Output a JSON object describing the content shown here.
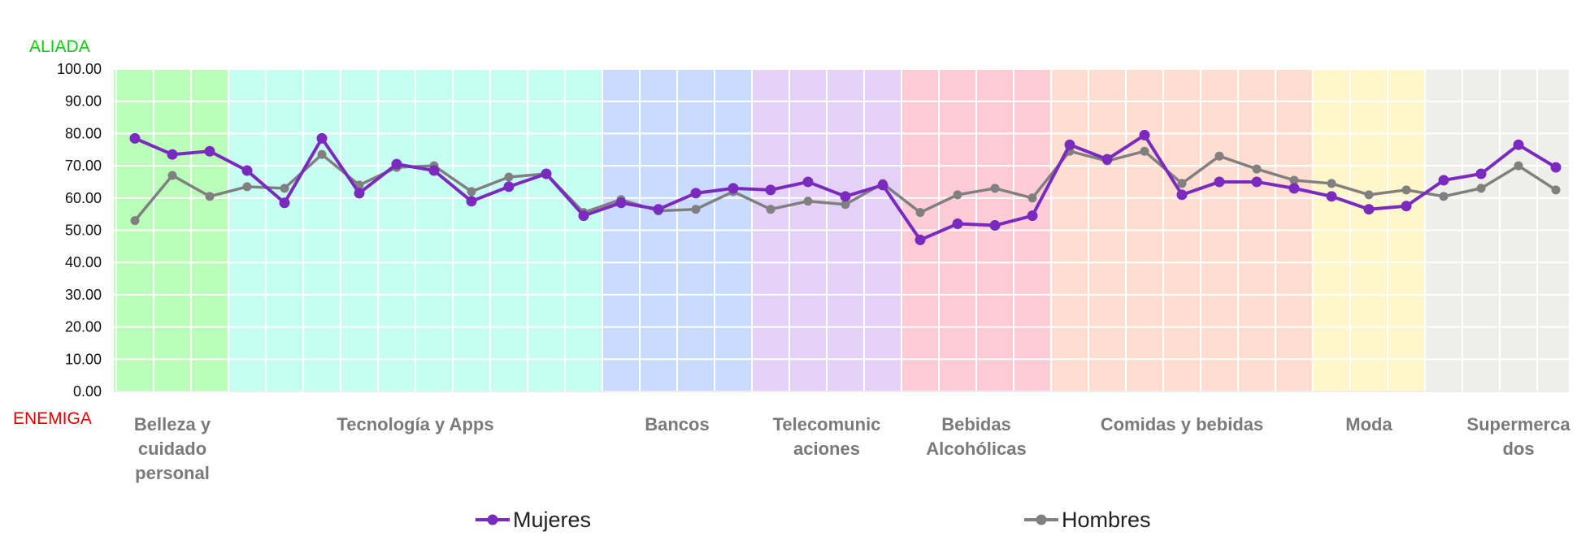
{
  "chart_data": {
    "type": "line",
    "top_label": "ALIADA",
    "bottom_label": "ENEMIGA",
    "top_label_color": "#0dcc0d",
    "bottom_label_color": "#e00000",
    "ylim": [
      0,
      100
    ],
    "y_ticks": [
      "0.00",
      "10.00",
      "20.00",
      "30.00",
      "40.00",
      "50.00",
      "60.00",
      "70.00",
      "80.00",
      "90.00",
      "100.00"
    ],
    "grid": true,
    "legend_position": "bottom",
    "x": [
      1,
      2,
      3,
      4,
      5,
      6,
      7,
      8,
      9,
      10,
      11,
      12,
      13,
      14,
      15,
      16,
      17,
      18,
      19,
      20,
      21,
      22,
      23,
      24,
      25,
      26,
      27,
      28,
      29,
      30,
      31,
      32,
      33,
      34,
      35,
      36,
      37,
      38,
      39,
      40
    ],
    "categories": [
      {
        "label": [
          "Belleza y",
          "cuidado",
          "personal"
        ],
        "from": 1,
        "to": 3,
        "color": "#b9ffb9"
      },
      {
        "label": [
          "Tecnología y Apps"
        ],
        "from": 4,
        "to": 13,
        "color": "#c6fff1"
      },
      {
        "label": [
          "Bancos"
        ],
        "from": 14,
        "to": 17,
        "color": "#c9dcff"
      },
      {
        "label": [
          "Telecomunic",
          "aciones"
        ],
        "from": 18,
        "to": 21,
        "color": "#e5d1f7"
      },
      {
        "label": [
          "Bebidas",
          "Alcohólicas"
        ],
        "from": 22,
        "to": 25,
        "color": "#ffcbd5"
      },
      {
        "label": [
          "Comidas y bebidas"
        ],
        "from": 26,
        "to": 32,
        "color": "#ffddd1"
      },
      {
        "label": [
          "Moda"
        ],
        "from": 33,
        "to": 35,
        "color": "#fff6ca"
      },
      {
        "label": [
          "Supermerca",
          "dos"
        ],
        "from": 36,
        "to": 40,
        "color": "#eeefea"
      }
    ],
    "series": [
      {
        "name": "Mujeres",
        "color": "#7b2abf",
        "values": [
          78.5,
          73.5,
          74.5,
          68.5,
          58.5,
          78.5,
          61.5,
          70.5,
          68.5,
          59.0,
          63.5,
          67.5,
          54.5,
          58.5,
          56.5,
          61.5,
          63.0,
          62.5,
          65.0,
          60.5,
          64.0,
          47.0,
          52.0,
          51.5,
          54.5,
          76.5,
          72.0,
          79.5,
          61.0,
          65.0,
          65.0,
          63.0,
          60.5,
          56.5,
          57.5,
          65.5,
          67.5,
          76.5,
          69.5,
          null
        ]
      },
      {
        "name": "Hombres",
        "color": "#808080",
        "values": [
          53.0,
          67.0,
          60.5,
          63.5,
          63.0,
          73.5,
          64.0,
          69.5,
          70.0,
          62.0,
          66.5,
          67.5,
          55.5,
          59.5,
          56.0,
          56.5,
          62.0,
          56.5,
          59.0,
          58.0,
          64.5,
          55.5,
          61.0,
          63.0,
          60.0,
          74.5,
          71.5,
          74.5,
          64.5,
          73.0,
          69.0,
          65.5,
          64.5,
          61.0,
          62.5,
          60.5,
          63.0,
          70.0,
          62.5,
          null
        ]
      }
    ]
  }
}
